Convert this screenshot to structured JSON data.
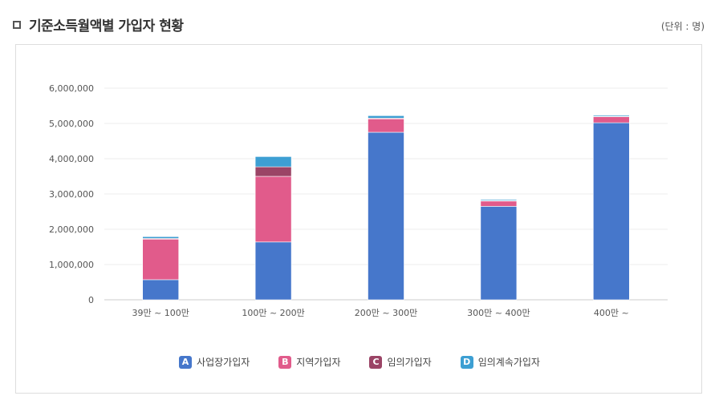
{
  "header": {
    "title": "기준소득월액별 가입자 현황",
    "unit": "(단위 : 명)"
  },
  "chart_data": {
    "type": "bar",
    "stacked": true,
    "categories": [
      "39만 ~ 100만",
      "100만 ~ 200만",
      "200만 ~ 300만",
      "300만 ~ 400만",
      "400만 ~"
    ],
    "series": [
      {
        "name": "사업장가입자",
        "badge": "A",
        "color": "#4677cb",
        "values": [
          570000,
          1640000,
          4750000,
          2650000,
          5020000
        ]
      },
      {
        "name": "지역가입자",
        "badge": "B",
        "color": "#e15b8b",
        "values": [
          1150000,
          1860000,
          380000,
          150000,
          170000
        ]
      },
      {
        "name": "임의가입자",
        "badge": "C",
        "color": "#9b4466",
        "values": [
          20000,
          270000,
          20000,
          10000,
          10000
        ]
      },
      {
        "name": "임의계속가입자",
        "badge": "D",
        "color": "#3d9fd3",
        "values": [
          50000,
          290000,
          70000,
          30000,
          30000
        ]
      }
    ],
    "yticks": [
      "0",
      "1,000,000",
      "2,000,000",
      "3,000,000",
      "4,000,000",
      "5,000,000",
      "6,000,000"
    ],
    "ylim": [
      0,
      6000000
    ],
    "grid": true,
    "legend": "bottom"
  }
}
